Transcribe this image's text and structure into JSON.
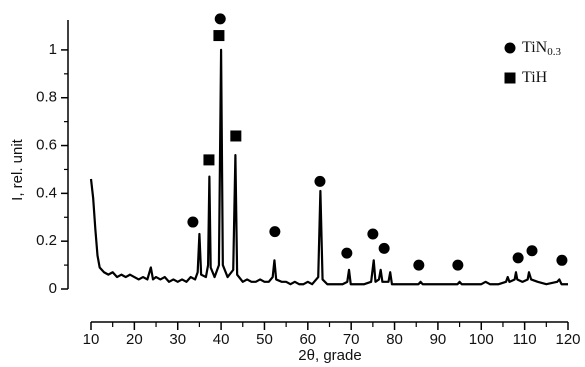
{
  "chart_data": {
    "type": "line",
    "xlabel": "2θ, grade",
    "ylabel": "I, rel. unit",
    "xlim": [
      10,
      120
    ],
    "ylim": [
      0,
      1.1
    ],
    "xticks": [
      10,
      20,
      30,
      40,
      50,
      60,
      70,
      80,
      90,
      100,
      110,
      120
    ],
    "xminorticks": [
      15,
      25,
      35,
      45,
      55,
      65,
      75,
      85,
      95,
      105,
      115
    ],
    "yticks": [
      0,
      0.2,
      0.4,
      0.6,
      0.8,
      1
    ],
    "yminorticks": [
      0.1,
      0.3,
      0.5,
      0.7,
      0.9
    ],
    "pattern": {
      "color": "#000000",
      "x": [
        10,
        10.5,
        11,
        11.5,
        12,
        13,
        14,
        15,
        16,
        17,
        18,
        19,
        20,
        21,
        22,
        23,
        23.8,
        24.3,
        25,
        26,
        27,
        28,
        29,
        30,
        31,
        32,
        33,
        34,
        34.6,
        35,
        35.4,
        36.5,
        37,
        37.3,
        37.6,
        38.5,
        39.5,
        40,
        40.4,
        41.5,
        42.8,
        43.3,
        43.7,
        45,
        46,
        47,
        48,
        49,
        50,
        51,
        51.9,
        52.3,
        52.7,
        54,
        55,
        56,
        57,
        58,
        59,
        60,
        61,
        62.4,
        62.9,
        63.4,
        64.5,
        66,
        67,
        68,
        69.1,
        69.5,
        69.9,
        71,
        72,
        73,
        74.6,
        75.2,
        75.6,
        76.4,
        76.8,
        77.2,
        78.6,
        79,
        79.4,
        81,
        82,
        83,
        84,
        85.5,
        86,
        86.5,
        88,
        90,
        92,
        94.5,
        95,
        95.5,
        98,
        100,
        101,
        102,
        104,
        105.7,
        106.1,
        106.5,
        107.7,
        108,
        108.3,
        109.5,
        110.7,
        111,
        111.5,
        113,
        115,
        117.5,
        118,
        118.5,
        120
      ],
      "values": [
        0.46,
        0.38,
        0.25,
        0.14,
        0.09,
        0.07,
        0.06,
        0.07,
        0.05,
        0.06,
        0.05,
        0.06,
        0.05,
        0.04,
        0.05,
        0.04,
        0.09,
        0.04,
        0.05,
        0.04,
        0.05,
        0.03,
        0.04,
        0.03,
        0.04,
        0.03,
        0.05,
        0.04,
        0.07,
        0.23,
        0.06,
        0.05,
        0.1,
        0.47,
        0.09,
        0.05,
        0.1,
        1.0,
        0.1,
        0.05,
        0.08,
        0.56,
        0.06,
        0.03,
        0.04,
        0.03,
        0.03,
        0.04,
        0.03,
        0.03,
        0.05,
        0.12,
        0.04,
        0.03,
        0.03,
        0.02,
        0.03,
        0.02,
        0.02,
        0.03,
        0.02,
        0.05,
        0.41,
        0.04,
        0.02,
        0.02,
        0.02,
        0.02,
        0.03,
        0.08,
        0.02,
        0.02,
        0.02,
        0.02,
        0.03,
        0.12,
        0.03,
        0.04,
        0.08,
        0.03,
        0.03,
        0.07,
        0.02,
        0.02,
        0.02,
        0.02,
        0.02,
        0.02,
        0.03,
        0.02,
        0.02,
        0.02,
        0.02,
        0.02,
        0.03,
        0.02,
        0.02,
        0.02,
        0.03,
        0.02,
        0.02,
        0.03,
        0.05,
        0.03,
        0.04,
        0.07,
        0.04,
        0.03,
        0.04,
        0.07,
        0.04,
        0.03,
        0.02,
        0.03,
        0.04,
        0.02,
        0.02
      ]
    },
    "markers": [
      {
        "name": "TiN",
        "subscript": "0.3",
        "marker": "circle",
        "color": "#000000",
        "x": [
          33.5,
          39.8,
          52.4,
          62.8,
          69,
          75,
          77.6,
          85.6,
          94.6,
          108.5,
          111.7,
          118.6
        ],
        "values": [
          0.28,
          1.13,
          0.24,
          0.45,
          0.15,
          0.23,
          0.17,
          0.1,
          0.1,
          0.13,
          0.16,
          0.12
        ]
      },
      {
        "name": "TiH",
        "marker": "square",
        "color": "#000000",
        "x": [
          37.2,
          39.5,
          43.4
        ],
        "values": [
          0.54,
          1.06,
          0.64
        ]
      }
    ]
  }
}
